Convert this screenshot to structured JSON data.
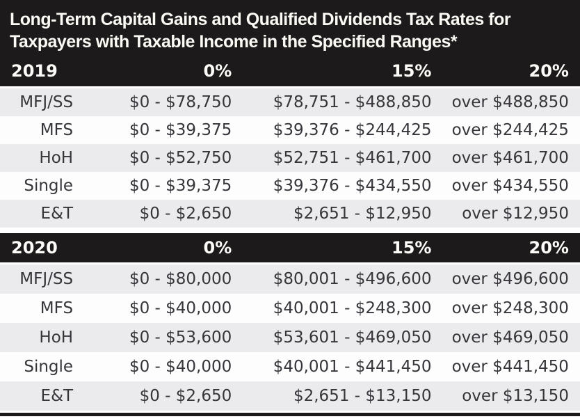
{
  "title": {
    "line1": "Long-Term Capital Gains and Qualified Dividends Tax Rates for",
    "line2": "Taxpayers with Taxable Income in the Specified Ranges*"
  },
  "colors": {
    "band_black": "#1c1a1a",
    "stripe_gray": "#ebebed",
    "stripe_white": "#fdfdfe",
    "body_text": "#37353a",
    "band_text": "#fbfaf5"
  },
  "sections": [
    {
      "year": "2019",
      "columns": [
        "0%",
        "15%",
        "20%"
      ],
      "rows": [
        {
          "label": "MFJ/SS",
          "r0": "$0 - $78,750",
          "r15": "$78,751 - $488,850",
          "r20": "over $488,850"
        },
        {
          "label": "MFS",
          "r0": "$0 - $39,375",
          "r15": "$39,376 - $244,425",
          "r20": "over $244,425"
        },
        {
          "label": "HoH",
          "r0": "$0 - $52,750",
          "r15": "$52,751 - $461,700",
          "r20": "over $461,700"
        },
        {
          "label": "Single",
          "r0": "$0 - $39,375",
          "r15": "$39,376 - $434,550",
          "r20": "over $434,550"
        },
        {
          "label": "E&T",
          "r0": "$0 - $2,650",
          "r15": "$2,651 - $12,950",
          "r20": "over $12,950"
        }
      ]
    },
    {
      "year": "2020",
      "columns": [
        "0%",
        "15%",
        "20%"
      ],
      "rows": [
        {
          "label": "MFJ/SS",
          "r0": "$0 - $80,000",
          "r15": "$80,001 - $496,600",
          "r20": "over $496,600"
        },
        {
          "label": "MFS",
          "r0": "$0 - $40,000",
          "r15": "$40,001 - $248,300",
          "r20": "over $248,300"
        },
        {
          "label": "HoH",
          "r0": "$0 - $53,600",
          "r15": "$53,601 - $469,050",
          "r20": "over $469,050"
        },
        {
          "label": "Single",
          "r0": "$0 - $40,000",
          "r15": "$40,001 - $441,450",
          "r20": "over $441,450"
        },
        {
          "label": "E&T",
          "r0": "$0 - $2,650",
          "r15": "$2,651 - $13,150",
          "r20": "over $13,150"
        }
      ]
    }
  ]
}
